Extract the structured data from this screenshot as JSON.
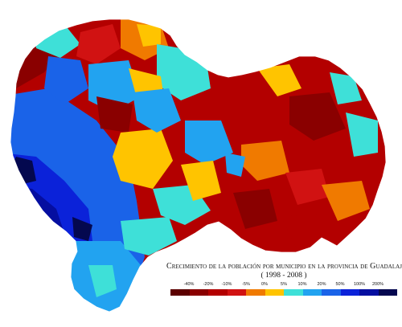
{
  "map": {
    "title": "Crecimiento de la población por municipio en la provincia de Guadalajara",
    "subtitle": "( 1998 - 2008 )"
  },
  "legend": {
    "labels": [
      "-40%",
      "-20%",
      "-10%",
      "-5%",
      "0%",
      "5%",
      "10%",
      "20%",
      "50%",
      "100%",
      "200%"
    ],
    "colors": [
      "#5c0000",
      "#8a0000",
      "#b30000",
      "#d11212",
      "#f07a00",
      "#ffc400",
      "#3ee0d8",
      "#22a3f0",
      "#1a63e8",
      "#0b22d9",
      "#050ea0",
      "#04084f"
    ]
  }
}
